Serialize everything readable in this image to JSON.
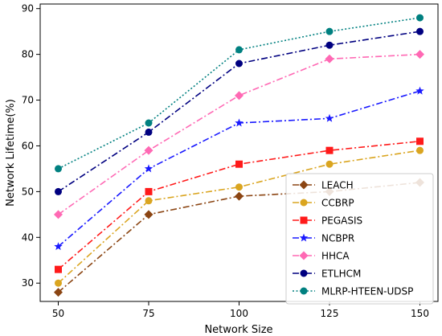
{
  "chart_data": {
    "type": "line",
    "title": "",
    "xlabel": "Network Size",
    "ylabel": "Network Lifetime(%)",
    "x": [
      50,
      75,
      100,
      125,
      150
    ],
    "xlim": [
      45,
      155
    ],
    "ylim": [
      26,
      91
    ],
    "xticks": [
      "50",
      "75",
      "100",
      "125",
      "150"
    ],
    "yticks": [
      "30",
      "40",
      "50",
      "60",
      "70",
      "80",
      "90"
    ],
    "grid": false,
    "legend": "lower-right",
    "series": [
      {
        "name": "LEACH",
        "values": [
          28,
          45,
          49,
          50,
          52
        ],
        "color": "#8b4513",
        "marker": "diamond",
        "dash": "dashdot"
      },
      {
        "name": "CCBRP",
        "values": [
          30,
          48,
          51,
          56,
          59
        ],
        "color": "#daa520",
        "marker": "circle",
        "dash": "dashdot"
      },
      {
        "name": "PEGASIS",
        "values": [
          33,
          50,
          56,
          59,
          61
        ],
        "color": "#ff1a1a",
        "marker": "square",
        "dash": "dashdot"
      },
      {
        "name": "NCBPR",
        "values": [
          38,
          55,
          65,
          66,
          72
        ],
        "color": "#1a1aff",
        "marker": "star",
        "dash": "dashdot"
      },
      {
        "name": "HHCA",
        "values": [
          45,
          59,
          71,
          79,
          80
        ],
        "color": "#ff69b4",
        "marker": "diamond",
        "dash": "dashdot"
      },
      {
        "name": "ETLHCM",
        "values": [
          50,
          63,
          78,
          82,
          85
        ],
        "color": "#000080",
        "marker": "circle",
        "dash": "dashdot"
      },
      {
        "name": "MLRP-HTEEN-UDSP",
        "values": [
          55,
          65,
          81,
          85,
          88
        ],
        "color": "#008080",
        "marker": "circle",
        "dash": "dotted"
      }
    ]
  }
}
